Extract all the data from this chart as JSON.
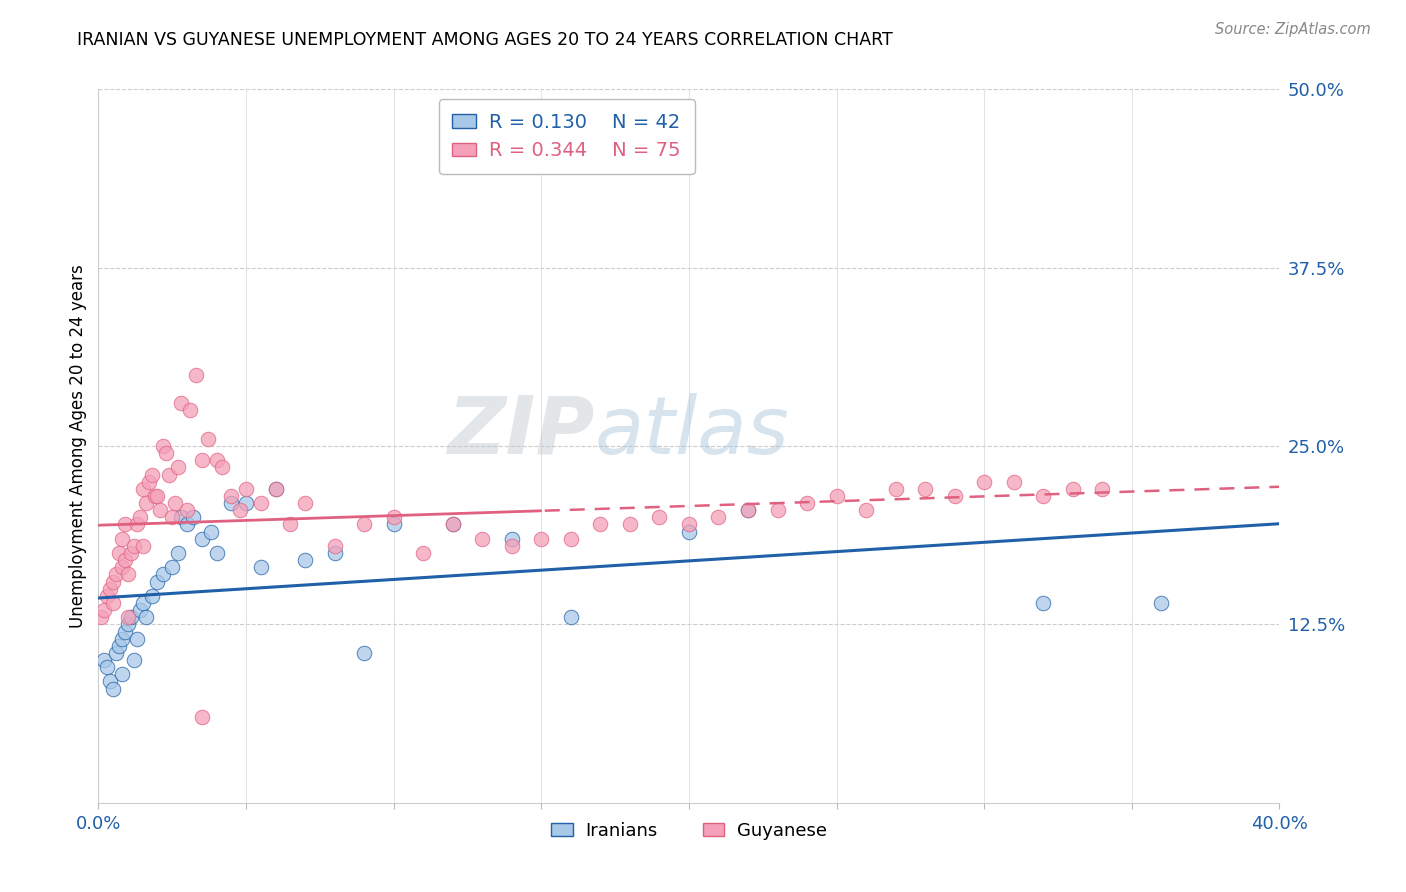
{
  "title": "IRANIAN VS GUYANESE UNEMPLOYMENT AMONG AGES 20 TO 24 YEARS CORRELATION CHART",
  "source": "Source: ZipAtlas.com",
  "ylabel": "Unemployment Among Ages 20 to 24 years",
  "xlim": [
    0.0,
    0.4
  ],
  "ylim": [
    0.0,
    0.5
  ],
  "yticks_right": [
    0.125,
    0.25,
    0.375,
    0.5
  ],
  "ytick_labels_right": [
    "12.5%",
    "25.0%",
    "37.5%",
    "50.0%"
  ],
  "xtick_positions": [
    0.0,
    0.05,
    0.1,
    0.15,
    0.2,
    0.25,
    0.3,
    0.35,
    0.4
  ],
  "xtick_labels": [
    "0.0%",
    "",
    "",
    "",
    "",
    "",
    "",
    "",
    "40.0%"
  ],
  "watermark": "ZIPatlas",
  "iranians_color": "#A8C8E8",
  "guyanese_color": "#F4A0B8",
  "line_iranian_color": "#2060A8",
  "line_guyanese_color": "#E06080",
  "R_iranian": 0.13,
  "N_iranian": 42,
  "R_guyanese": 0.344,
  "N_guyanese": 75,
  "iranians_x": [
    0.002,
    0.003,
    0.004,
    0.005,
    0.006,
    0.007,
    0.008,
    0.008,
    0.009,
    0.01,
    0.011,
    0.012,
    0.013,
    0.014,
    0.015,
    0.016,
    0.018,
    0.02,
    0.022,
    0.025,
    0.027,
    0.028,
    0.03,
    0.032,
    0.035,
    0.038,
    0.04,
    0.045,
    0.05,
    0.055,
    0.06,
    0.07,
    0.08,
    0.09,
    0.1,
    0.12,
    0.14,
    0.16,
    0.2,
    0.22,
    0.32,
    0.36
  ],
  "iranians_y": [
    0.1,
    0.095,
    0.085,
    0.08,
    0.105,
    0.11,
    0.115,
    0.09,
    0.12,
    0.125,
    0.13,
    0.1,
    0.115,
    0.135,
    0.14,
    0.13,
    0.145,
    0.155,
    0.16,
    0.165,
    0.175,
    0.2,
    0.195,
    0.2,
    0.185,
    0.19,
    0.175,
    0.21,
    0.21,
    0.165,
    0.22,
    0.17,
    0.175,
    0.105,
    0.195,
    0.195,
    0.185,
    0.13,
    0.19,
    0.205,
    0.14,
    0.14
  ],
  "guyanese_x": [
    0.001,
    0.002,
    0.003,
    0.004,
    0.005,
    0.005,
    0.006,
    0.007,
    0.008,
    0.008,
    0.009,
    0.009,
    0.01,
    0.01,
    0.011,
    0.012,
    0.013,
    0.014,
    0.015,
    0.015,
    0.016,
    0.017,
    0.018,
    0.019,
    0.02,
    0.021,
    0.022,
    0.023,
    0.024,
    0.025,
    0.026,
    0.027,
    0.028,
    0.03,
    0.031,
    0.033,
    0.035,
    0.037,
    0.04,
    0.042,
    0.045,
    0.048,
    0.05,
    0.055,
    0.06,
    0.065,
    0.07,
    0.08,
    0.09,
    0.1,
    0.11,
    0.12,
    0.13,
    0.14,
    0.15,
    0.16,
    0.17,
    0.18,
    0.19,
    0.2,
    0.21,
    0.22,
    0.23,
    0.24,
    0.25,
    0.26,
    0.27,
    0.28,
    0.29,
    0.3,
    0.31,
    0.32,
    0.33,
    0.34,
    0.035
  ],
  "guyanese_y": [
    0.13,
    0.135,
    0.145,
    0.15,
    0.14,
    0.155,
    0.16,
    0.175,
    0.165,
    0.185,
    0.17,
    0.195,
    0.13,
    0.16,
    0.175,
    0.18,
    0.195,
    0.2,
    0.18,
    0.22,
    0.21,
    0.225,
    0.23,
    0.215,
    0.215,
    0.205,
    0.25,
    0.245,
    0.23,
    0.2,
    0.21,
    0.235,
    0.28,
    0.205,
    0.275,
    0.3,
    0.24,
    0.255,
    0.24,
    0.235,
    0.215,
    0.205,
    0.22,
    0.21,
    0.22,
    0.195,
    0.21,
    0.18,
    0.195,
    0.2,
    0.175,
    0.195,
    0.185,
    0.18,
    0.185,
    0.185,
    0.195,
    0.195,
    0.2,
    0.195,
    0.2,
    0.205,
    0.205,
    0.21,
    0.215,
    0.205,
    0.22,
    0.22,
    0.215,
    0.225,
    0.225,
    0.215,
    0.22,
    0.22,
    0.06
  ]
}
